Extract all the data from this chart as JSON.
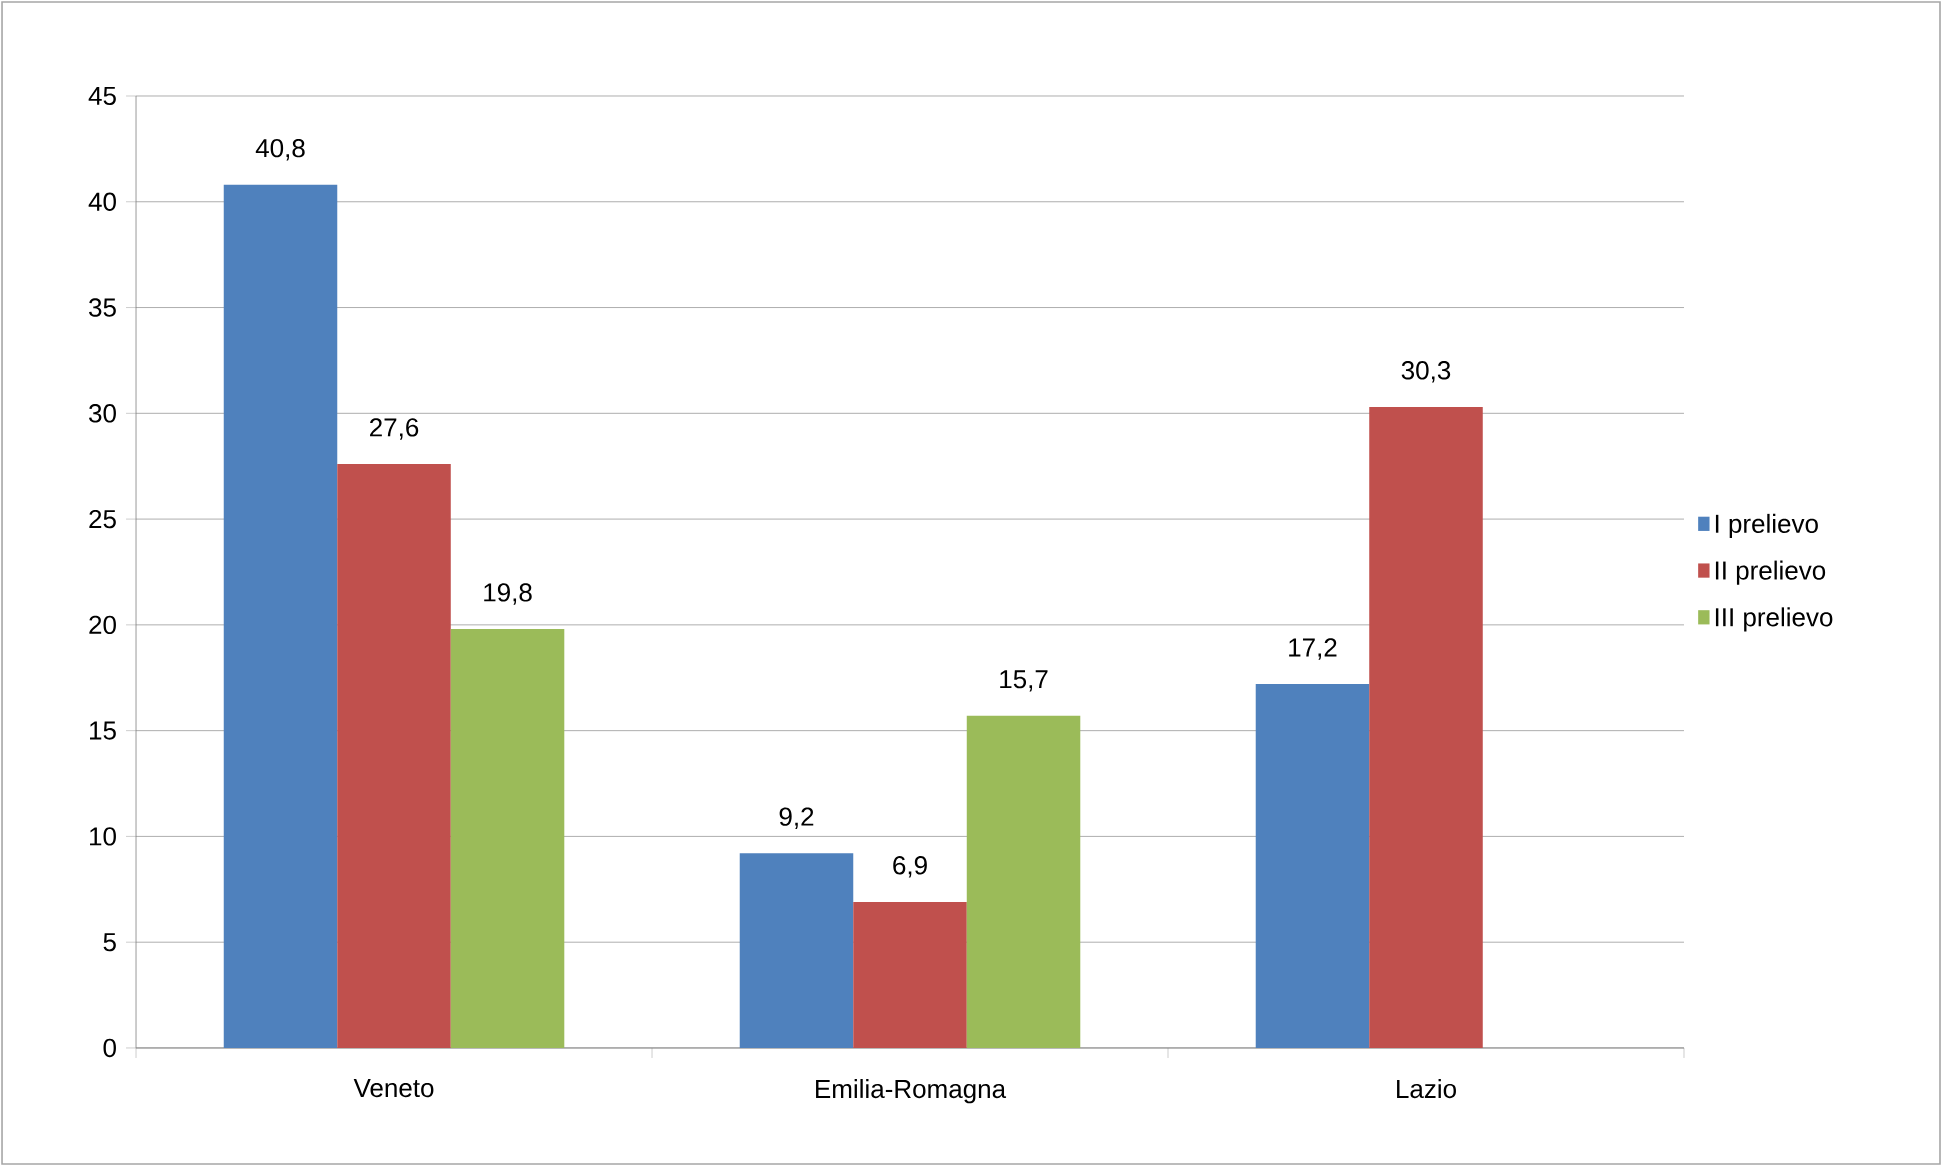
{
  "chart_data": {
    "type": "bar",
    "categories": [
      "Veneto",
      "Emilia-Romagna",
      "Lazio"
    ],
    "series": [
      {
        "name": "I prelievo",
        "color": "#4f81bd",
        "values": [
          40.8,
          9.2,
          17.2
        ],
        "value_labels": [
          "40,8",
          "9,2",
          "17,2"
        ]
      },
      {
        "name": "II prelievo",
        "color": "#c0504d",
        "values": [
          27.6,
          6.9,
          30.3
        ],
        "value_labels": [
          "27,6",
          "6,9",
          "30,3"
        ]
      },
      {
        "name": "III prelievo",
        "color": "#9bbb59",
        "values": [
          19.8,
          15.7,
          null
        ],
        "value_labels": [
          "19,8",
          "15,7",
          null
        ]
      }
    ],
    "ylim": [
      0,
      45
    ],
    "yticks": [
      0,
      5,
      10,
      15,
      20,
      25,
      30,
      35,
      40,
      45
    ],
    "grid": "y",
    "legend": "right"
  }
}
